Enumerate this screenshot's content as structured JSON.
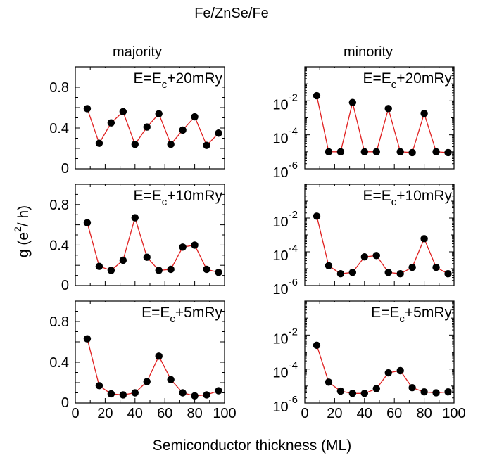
{
  "figure": {
    "title": "Fe/ZnSe/Fe",
    "column_labels": [
      "majority",
      "minority"
    ],
    "ylabel_base": "g (e",
    "ylabel_exp": "2",
    "ylabel_tail": "/ h)",
    "xlabel": "Semiconductor thickness (ML)"
  },
  "chart_data": [
    {
      "type": "line",
      "panel": "majority-top",
      "annotation": {
        "base": "E=E",
        "sub": "c",
        "tail": "+20mRy"
      },
      "x": [
        8,
        16,
        24,
        32,
        40,
        48,
        56,
        64,
        72,
        80,
        88,
        96
      ],
      "y": [
        0.59,
        0.25,
        0.45,
        0.56,
        0.24,
        0.41,
        0.54,
        0.24,
        0.38,
        0.51,
        0.23,
        0.35
      ],
      "xlim": [
        0,
        100
      ],
      "ylim": [
        0,
        1.0
      ],
      "yscale": "linear",
      "yticks": [
        {
          "v": 0,
          "label": "0"
        },
        {
          "v": 0.4,
          "label": "0.4"
        },
        {
          "v": 0.8,
          "label": "0.8"
        }
      ],
      "xticks": [],
      "color": "#e02020"
    },
    {
      "type": "line",
      "panel": "minority-top",
      "annotation": {
        "base": "E=E",
        "sub": "c",
        "tail": "+20mRy"
      },
      "x": [
        8,
        16,
        24,
        32,
        40,
        48,
        56,
        64,
        72,
        80,
        88,
        96
      ],
      "y": [
        0.02,
        1e-05,
        1e-05,
        0.008,
        1e-05,
        1e-05,
        0.0035,
        1e-05,
        9e-06,
        0.0018,
        1e-05,
        9e-06
      ],
      "xlim": [
        0,
        100
      ],
      "ylim": [
        1e-06,
        1.0
      ],
      "yscale": "log",
      "yticks": [
        {
          "v": 1e-06,
          "base": "10",
          "exp": "-6"
        },
        {
          "v": 0.0001,
          "base": "10",
          "exp": "-4"
        },
        {
          "v": 0.01,
          "base": "10",
          "exp": "-2"
        }
      ],
      "xticks": [],
      "color": "#e02020"
    },
    {
      "type": "line",
      "panel": "majority-middle",
      "annotation": {
        "base": "E=E",
        "sub": "c",
        "tail": "+10mRy"
      },
      "x": [
        8,
        16,
        24,
        32,
        40,
        48,
        56,
        64,
        72,
        80,
        88,
        96
      ],
      "y": [
        0.62,
        0.19,
        0.15,
        0.25,
        0.67,
        0.28,
        0.15,
        0.16,
        0.38,
        0.4,
        0.16,
        0.13
      ],
      "xlim": [
        0,
        100
      ],
      "ylim": [
        0,
        1.0
      ],
      "yscale": "linear",
      "yticks": [
        {
          "v": 0,
          "label": "0"
        },
        {
          "v": 0.4,
          "label": "0.4"
        },
        {
          "v": 0.8,
          "label": "0.8"
        }
      ],
      "xticks": [],
      "color": "#e02020"
    },
    {
      "type": "line",
      "panel": "minority-middle",
      "annotation": {
        "base": "E=E",
        "sub": "c",
        "tail": "+10mRy"
      },
      "x": [
        8,
        16,
        24,
        32,
        40,
        48,
        56,
        64,
        72,
        80,
        88,
        96
      ],
      "y": [
        0.013,
        1.5e-05,
        5e-06,
        6e-06,
        5e-05,
        6e-05,
        6e-06,
        5e-06,
        1.2e-05,
        0.0006,
        1.2e-05,
        5e-06
      ],
      "xlim": [
        0,
        100
      ],
      "ylim": [
        1e-06,
        1.0
      ],
      "yscale": "log",
      "yticks": [
        {
          "v": 1e-06,
          "base": "10",
          "exp": "-6"
        },
        {
          "v": 0.0001,
          "base": "10",
          "exp": "-4"
        },
        {
          "v": 0.01,
          "base": "10",
          "exp": "-2"
        }
      ],
      "xticks": [],
      "color": "#e02020"
    },
    {
      "type": "line",
      "panel": "majority-bottom",
      "annotation": {
        "base": "E=E",
        "sub": "c",
        "tail": "+5mRy"
      },
      "x": [
        8,
        16,
        24,
        32,
        40,
        48,
        56,
        64,
        72,
        80,
        88,
        96
      ],
      "y": [
        0.63,
        0.17,
        0.09,
        0.08,
        0.1,
        0.21,
        0.46,
        0.23,
        0.1,
        0.07,
        0.08,
        0.12
      ],
      "xlim": [
        0,
        100
      ],
      "ylim": [
        0,
        1.0
      ],
      "yscale": "linear",
      "yticks": [
        {
          "v": 0,
          "label": "0"
        },
        {
          "v": 0.4,
          "label": "0.4"
        },
        {
          "v": 0.8,
          "label": "0.8"
        }
      ],
      "xticks": [
        0,
        20,
        40,
        60,
        80,
        100
      ],
      "color": "#e02020"
    },
    {
      "type": "line",
      "panel": "minority-bottom",
      "annotation": {
        "base": "E=E",
        "sub": "c",
        "tail": "+5mRy"
      },
      "x": [
        8,
        16,
        24,
        32,
        40,
        48,
        56,
        64,
        72,
        80,
        88,
        96
      ],
      "y": [
        0.0025,
        1.7e-05,
        5e-06,
        3.7e-06,
        3.7e-06,
        7e-06,
        6e-05,
        8e-05,
        8e-06,
        4.5e-06,
        4e-06,
        4.5e-06
      ],
      "xlim": [
        0,
        100
      ],
      "ylim": [
        1e-06,
        1.0
      ],
      "yscale": "log",
      "yticks": [
        {
          "v": 1e-06,
          "base": "10",
          "exp": "-6"
        },
        {
          "v": 0.0001,
          "base": "10",
          "exp": "-4"
        },
        {
          "v": 0.01,
          "base": "10",
          "exp": "-2"
        }
      ],
      "xticks": [
        0,
        20,
        40,
        60,
        80,
        100
      ],
      "color": "#e02020"
    }
  ]
}
